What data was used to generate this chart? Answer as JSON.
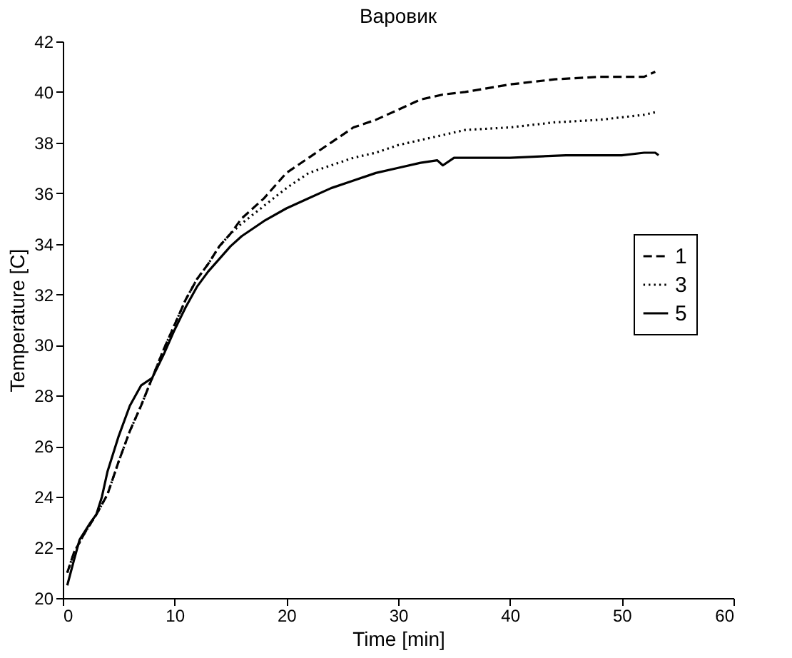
{
  "chart_data": {
    "type": "line",
    "title": "Варовик",
    "xlabel": "Time [min]",
    "ylabel": "Temperature [C]",
    "xlim": [
      0,
      60
    ],
    "xticks": [
      0,
      10,
      20,
      30,
      40,
      50,
      60
    ],
    "ylim": [
      20,
      42
    ],
    "yticks": [
      20,
      22,
      24,
      26,
      28,
      30,
      32,
      34,
      36,
      38,
      40,
      42
    ],
    "grid": false,
    "legend": "right",
    "marker": "none",
    "series": [
      {
        "name": "1",
        "color": "#000000",
        "line_style": "dashed",
        "x": [
          0.4,
          1,
          2,
          3,
          4,
          5,
          6,
          7,
          8,
          9,
          10,
          11,
          12,
          13,
          14,
          15,
          16,
          18,
          20,
          22,
          24,
          26,
          28,
          30,
          32,
          34,
          36,
          40,
          44,
          48,
          52,
          53
        ],
        "values": [
          21.0,
          21.8,
          22.6,
          23.3,
          24.1,
          25.4,
          26.6,
          27.6,
          28.7,
          29.8,
          30.8,
          31.8,
          32.6,
          33.2,
          33.9,
          34.4,
          35.0,
          35.8,
          36.8,
          37.4,
          38.0,
          38.6,
          38.9,
          39.3,
          39.7,
          39.9,
          40.0,
          40.3,
          40.5,
          40.6,
          40.6,
          40.8
        ]
      },
      {
        "name": "3",
        "color": "#000000",
        "line_style": "dotted",
        "x": [
          0.4,
          1,
          2,
          3,
          4,
          5,
          6,
          7,
          8,
          9,
          10,
          11,
          12,
          13,
          14,
          15,
          16,
          18,
          20,
          22,
          24,
          26,
          28,
          30,
          32,
          34,
          36,
          40,
          44,
          48,
          52,
          53
        ],
        "values": [
          21.0,
          21.8,
          22.6,
          23.3,
          24.1,
          25.4,
          26.6,
          27.6,
          28.7,
          29.8,
          30.8,
          31.8,
          32.6,
          33.2,
          33.9,
          34.4,
          34.8,
          35.5,
          36.2,
          36.8,
          37.1,
          37.4,
          37.6,
          37.9,
          38.1,
          38.3,
          38.5,
          38.6,
          38.8,
          38.9,
          39.1,
          39.2
        ]
      },
      {
        "name": "5",
        "color": "#000000",
        "line_style": "solid",
        "x": [
          0.4,
          1,
          1.5,
          2.5,
          3,
          3.5,
          4,
          5,
          6,
          7,
          8,
          9,
          10,
          11,
          12,
          13,
          14,
          15,
          16,
          18,
          20,
          22,
          24,
          26,
          28,
          30,
          32,
          33.5,
          34,
          35,
          40,
          45,
          50,
          52,
          53,
          53.3
        ],
        "values": [
          20.5,
          21.5,
          22.3,
          23.0,
          23.3,
          24.0,
          25.0,
          26.4,
          27.6,
          28.4,
          28.7,
          29.6,
          30.6,
          31.5,
          32.3,
          32.9,
          33.4,
          33.9,
          34.3,
          34.9,
          35.4,
          35.8,
          36.2,
          36.5,
          36.8,
          37.0,
          37.2,
          37.3,
          37.1,
          37.4,
          37.4,
          37.5,
          37.5,
          37.6,
          37.6,
          37.5
        ]
      }
    ]
  }
}
